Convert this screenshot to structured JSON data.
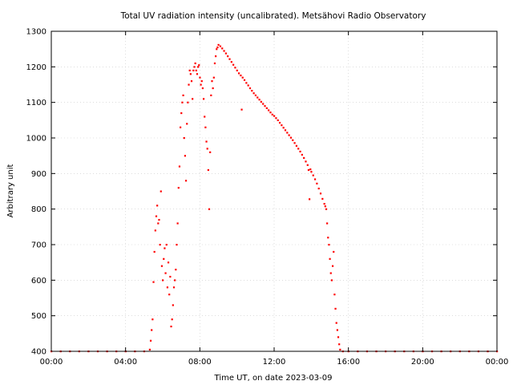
{
  "chart_data": {
    "type": "scatter",
    "title": "Total UV radiation intensity (uncalibrated). Metsähovi Radio Observatory",
    "xlabel": "Time UT, on date 2023-03-09",
    "ylabel": "Arbitrary unit",
    "xlim": [
      0,
      24
    ],
    "ylim": [
      400,
      1300
    ],
    "x_ticks": [
      {
        "value": 0,
        "label": "00:00"
      },
      {
        "value": 4,
        "label": "04:00"
      },
      {
        "value": 8,
        "label": "08:00"
      },
      {
        "value": 12,
        "label": "12:00"
      },
      {
        "value": 16,
        "label": "16:00"
      },
      {
        "value": 20,
        "label": "20:00"
      },
      {
        "value": 24,
        "label": "00:00"
      }
    ],
    "y_ticks": [
      400,
      500,
      600,
      700,
      800,
      900,
      1000,
      1100,
      1200,
      1300
    ],
    "grid": true,
    "point_color": "#ff0000",
    "series": [
      {
        "points": [
          [
            0.0,
            400
          ],
          [
            0.5,
            400
          ],
          [
            1.0,
            400
          ],
          [
            1.5,
            400
          ],
          [
            2.0,
            400
          ],
          [
            2.5,
            400
          ],
          [
            3.0,
            400
          ],
          [
            3.5,
            400
          ],
          [
            4.0,
            400
          ],
          [
            4.5,
            400
          ],
          [
            5.0,
            400
          ],
          [
            5.3,
            405
          ],
          [
            5.35,
            430
          ],
          [
            5.4,
            460
          ],
          [
            5.45,
            490
          ],
          [
            5.5,
            595
          ],
          [
            5.55,
            680
          ],
          [
            5.6,
            740
          ],
          [
            5.65,
            780
          ],
          [
            5.7,
            810
          ],
          [
            5.75,
            760
          ],
          [
            5.8,
            770
          ],
          [
            5.85,
            700
          ],
          [
            5.9,
            850
          ],
          [
            5.95,
            640
          ],
          [
            6.0,
            600
          ],
          [
            6.05,
            660
          ],
          [
            6.1,
            690
          ],
          [
            6.15,
            620
          ],
          [
            6.2,
            700
          ],
          [
            6.25,
            580
          ],
          [
            6.3,
            650
          ],
          [
            6.35,
            560
          ],
          [
            6.4,
            610
          ],
          [
            6.45,
            470
          ],
          [
            6.5,
            490
          ],
          [
            6.55,
            530
          ],
          [
            6.6,
            580
          ],
          [
            6.65,
            600
          ],
          [
            6.7,
            630
          ],
          [
            6.75,
            700
          ],
          [
            6.8,
            760
          ],
          [
            6.85,
            860
          ],
          [
            6.9,
            920
          ],
          [
            6.95,
            1030
          ],
          [
            7.0,
            1070
          ],
          [
            7.05,
            1100
          ],
          [
            7.1,
            1120
          ],
          [
            7.15,
            1000
          ],
          [
            7.2,
            950
          ],
          [
            7.25,
            880
          ],
          [
            7.3,
            1040
          ],
          [
            7.35,
            1100
          ],
          [
            7.4,
            1150
          ],
          [
            7.45,
            1190
          ],
          [
            7.5,
            1180
          ],
          [
            7.55,
            1160
          ],
          [
            7.6,
            1110
          ],
          [
            7.65,
            1190
          ],
          [
            7.7,
            1200
          ],
          [
            7.75,
            1210
          ],
          [
            7.8,
            1190
          ],
          [
            7.85,
            1180
          ],
          [
            7.9,
            1200
          ],
          [
            7.95,
            1205
          ],
          [
            8.0,
            1170
          ],
          [
            8.05,
            1150
          ],
          [
            8.1,
            1160
          ],
          [
            8.15,
            1140
          ],
          [
            8.2,
            1110
          ],
          [
            8.25,
            1060
          ],
          [
            8.3,
            1030
          ],
          [
            8.35,
            990
          ],
          [
            8.4,
            970
          ],
          [
            8.45,
            910
          ],
          [
            8.5,
            800
          ],
          [
            8.55,
            960
          ],
          [
            8.6,
            1120
          ],
          [
            8.65,
            1160
          ],
          [
            8.7,
            1140
          ],
          [
            8.75,
            1170
          ],
          [
            8.8,
            1210
          ],
          [
            8.85,
            1230
          ],
          [
            8.9,
            1250
          ],
          [
            8.95,
            1255
          ],
          [
            9.0,
            1262
          ],
          [
            9.1,
            1258
          ],
          [
            9.2,
            1252
          ],
          [
            9.3,
            1245
          ],
          [
            9.4,
            1238
          ],
          [
            9.5,
            1230
          ],
          [
            9.6,
            1222
          ],
          [
            9.7,
            1214
          ],
          [
            9.8,
            1206
          ],
          [
            9.9,
            1198
          ],
          [
            10.0,
            1190
          ],
          [
            10.1,
            1182
          ],
          [
            10.2,
            1176
          ],
          [
            10.25,
            1080
          ],
          [
            10.3,
            1170
          ],
          [
            10.4,
            1163
          ],
          [
            10.5,
            1155
          ],
          [
            10.6,
            1148
          ],
          [
            10.7,
            1140
          ],
          [
            10.8,
            1133
          ],
          [
            10.9,
            1126
          ],
          [
            11.0,
            1120
          ],
          [
            11.1,
            1114
          ],
          [
            11.2,
            1108
          ],
          [
            11.3,
            1102
          ],
          [
            11.4,
            1096
          ],
          [
            11.5,
            1090
          ],
          [
            11.6,
            1084
          ],
          [
            11.7,
            1078
          ],
          [
            11.8,
            1072
          ],
          [
            11.9,
            1066
          ],
          [
            12.0,
            1062
          ],
          [
            12.1,
            1056
          ],
          [
            12.2,
            1050
          ],
          [
            12.3,
            1043
          ],
          [
            12.4,
            1036
          ],
          [
            12.5,
            1029
          ],
          [
            12.6,
            1022
          ],
          [
            12.7,
            1015
          ],
          [
            12.8,
            1008
          ],
          [
            12.9,
            1001
          ],
          [
            13.0,
            994
          ],
          [
            13.1,
            986
          ],
          [
            13.2,
            978
          ],
          [
            13.3,
            970
          ],
          [
            13.4,
            962
          ],
          [
            13.5,
            953
          ],
          [
            13.6,
            944
          ],
          [
            13.7,
            934
          ],
          [
            13.8,
            924
          ],
          [
            13.85,
            910
          ],
          [
            13.9,
            828
          ],
          [
            13.95,
            912
          ],
          [
            14.0,
            905
          ],
          [
            14.1,
            895
          ],
          [
            14.2,
            884
          ],
          [
            14.3,
            872
          ],
          [
            14.4,
            858
          ],
          [
            14.5,
            844
          ],
          [
            14.6,
            829
          ],
          [
            14.7,
            815
          ],
          [
            14.75,
            808
          ],
          [
            14.8,
            800
          ],
          [
            14.85,
            760
          ],
          [
            14.9,
            720
          ],
          [
            14.95,
            700
          ],
          [
            15.0,
            660
          ],
          [
            15.05,
            620
          ],
          [
            15.1,
            600
          ],
          [
            15.15,
            640
          ],
          [
            15.2,
            680
          ],
          [
            15.25,
            560
          ],
          [
            15.3,
            520
          ],
          [
            15.35,
            480
          ],
          [
            15.4,
            460
          ],
          [
            15.45,
            440
          ],
          [
            15.5,
            420
          ],
          [
            15.55,
            405
          ],
          [
            15.7,
            400
          ],
          [
            16.0,
            400
          ],
          [
            16.5,
            400
          ],
          [
            17.0,
            400
          ],
          [
            17.5,
            400
          ],
          [
            18.0,
            400
          ],
          [
            18.5,
            400
          ],
          [
            19.0,
            400
          ],
          [
            19.5,
            400
          ],
          [
            20.0,
            400
          ],
          [
            20.5,
            400
          ],
          [
            21.0,
            400
          ],
          [
            21.5,
            400
          ],
          [
            22.0,
            400
          ],
          [
            22.5,
            400
          ],
          [
            23.0,
            400
          ],
          [
            23.5,
            400
          ],
          [
            24.0,
            400
          ]
        ]
      }
    ]
  }
}
